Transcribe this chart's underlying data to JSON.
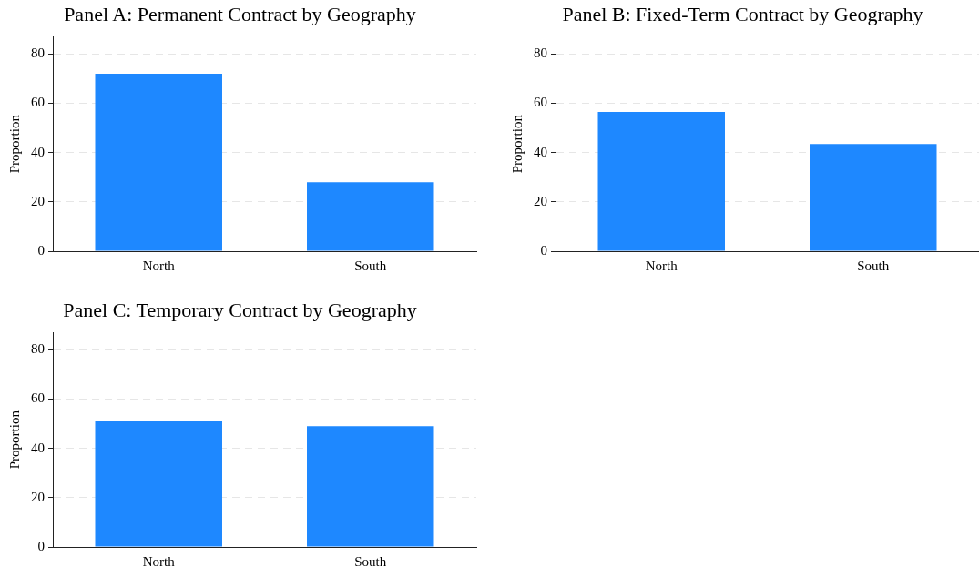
{
  "chart_data": [
    {
      "type": "bar",
      "title": "Panel A: Permanent Contract by Geography",
      "ylabel": "Proportion",
      "categories": [
        "North",
        "South"
      ],
      "values": [
        72,
        28
      ],
      "color": "#1e88ff",
      "ylim": [
        0,
        87
      ],
      "yticks": [
        0,
        20,
        40,
        60,
        80
      ],
      "grid": "y"
    },
    {
      "type": "bar",
      "title": "Panel B: Fixed-Term Contract by Geography",
      "ylabel": "Proportion",
      "categories": [
        "North",
        "South"
      ],
      "values": [
        56.5,
        43.5
      ],
      "color": "#1e88ff",
      "ylim": [
        0,
        87
      ],
      "yticks": [
        0,
        20,
        40,
        60,
        80
      ],
      "grid": "y"
    },
    {
      "type": "bar",
      "title": "Panel C: Temporary Contract by Geography",
      "ylabel": "Proportion",
      "categories": [
        "North",
        "South"
      ],
      "values": [
        51,
        49
      ],
      "color": "#1e88ff",
      "ylim": [
        0,
        87
      ],
      "yticks": [
        0,
        20,
        40,
        60,
        80
      ],
      "grid": "y"
    }
  ]
}
